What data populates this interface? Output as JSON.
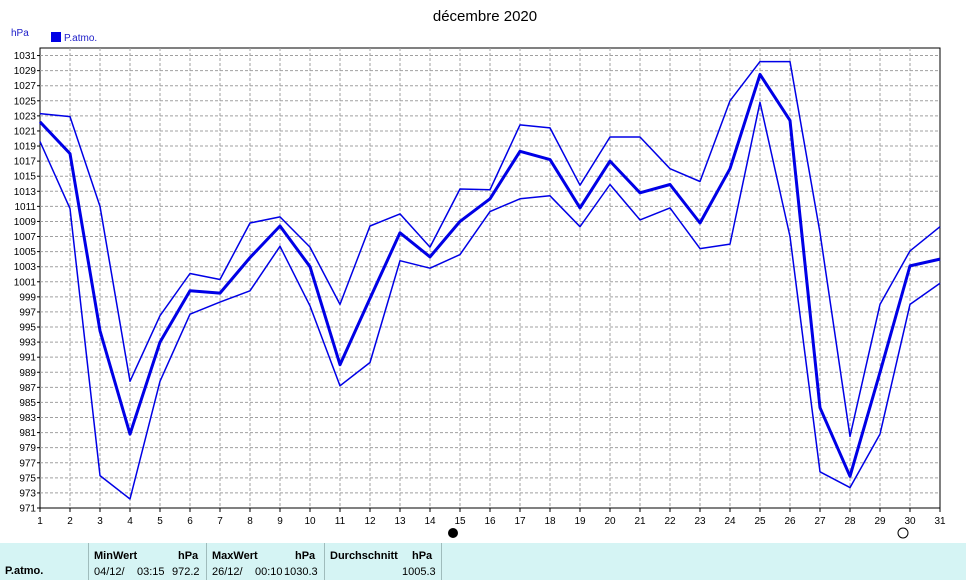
{
  "chart_data": {
    "type": "line",
    "title": "décembre 2020",
    "ylabel": "hPa",
    "ylim": [
      971,
      1032
    ],
    "yticks": [
      971,
      973,
      975,
      977,
      979,
      981,
      983,
      985,
      987,
      989,
      991,
      993,
      995,
      997,
      999,
      1001,
      1003,
      1005,
      1007,
      1009,
      1011,
      1013,
      1015,
      1017,
      1019,
      1021,
      1023,
      1025,
      1027,
      1029,
      1031
    ],
    "x": [
      1,
      2,
      3,
      4,
      5,
      6,
      7,
      8,
      9,
      10,
      11,
      12,
      13,
      14,
      15,
      16,
      17,
      18,
      19,
      20,
      21,
      22,
      23,
      24,
      25,
      26,
      27,
      28,
      29,
      30,
      31
    ],
    "grid": true,
    "legend": "top-left",
    "series": [
      {
        "name": "P.atmo.",
        "role": "mean",
        "color": "#0000e6",
        "values": [
          1022.2,
          1018,
          994.5,
          980.8,
          993,
          999.8,
          999.5,
          1004.2,
          1008.4,
          1003,
          990,
          998.8,
          1007.5,
          1004.3,
          1009,
          1012,
          1018.3,
          1017.2,
          1010.8,
          1017,
          1012.8,
          1013.9,
          1008.8,
          1016,
          1028.5,
          1022.4,
          984.3,
          975.2,
          989,
          1003.1,
          1004
        ]
      },
      {
        "role": "max",
        "color": "#0000e6",
        "values": [
          1023.3,
          1022.9,
          1011,
          987.8,
          996.5,
          1002.1,
          1001.3,
          1008.8,
          1009.6,
          1005.6,
          998,
          1008.4,
          1010,
          1005.6,
          1013.3,
          1013.2,
          1021.8,
          1021.4,
          1013.8,
          1020.2,
          1020.2,
          1016,
          1014.3,
          1025,
          1030.2,
          1030.2,
          1007.5,
          980.5,
          998,
          1005.1,
          1008.3
        ]
      },
      {
        "role": "min",
        "color": "#0000e6",
        "values": [
          1019.6,
          1010.7,
          975.3,
          972.2,
          987.8,
          996.7,
          998.3,
          999.8,
          1005.7,
          997.8,
          987.2,
          990.3,
          1003.8,
          1002.8,
          1004.6,
          1010.3,
          1012,
          1012.4,
          1008.3,
          1013.9,
          1009.2,
          1010.8,
          1005.4,
          1006,
          1024.8,
          1007,
          975.8,
          973.7,
          980.8,
          998,
          1000.8
        ]
      }
    ],
    "moon_markers": [
      {
        "x": 15,
        "phase": "new"
      },
      {
        "x": 30,
        "phase": "full"
      }
    ]
  },
  "stats": {
    "row_label": "P.atmo.",
    "min_header": "MinWert",
    "min_unit": "hPa",
    "min_date": "04/12/",
    "min_time": "03:15",
    "min_value": "972.2",
    "max_header": "MaxWert",
    "max_unit": "hPa",
    "max_date": "26/12/",
    "max_time": "00:10",
    "max_value": "1030.3",
    "avg_header": "Durchschnitt",
    "avg_unit": "hPa",
    "avg_value": "1005.3"
  }
}
